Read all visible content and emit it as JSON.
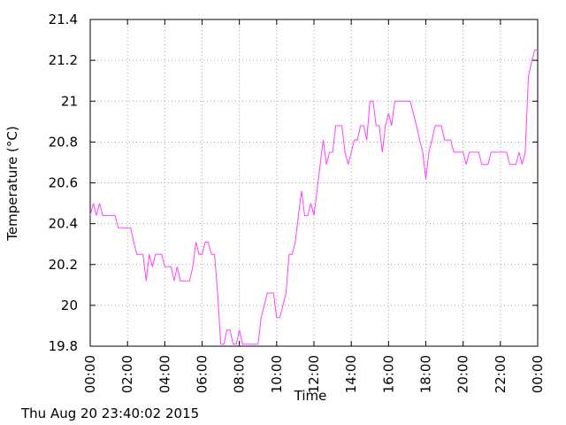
{
  "footer_timestamp": "Thu Aug 20 23:40:02 2015",
  "chart_data": {
    "type": "line",
    "title": "",
    "xlabel": "Time",
    "ylabel": "Temperature (°C)",
    "xlim": [
      "00:00",
      "24:00"
    ],
    "ylim": [
      19.8,
      21.4
    ],
    "grid": true,
    "x_tick_labels": [
      "00:00",
      "02:00",
      "04:00",
      "06:00",
      "08:00",
      "10:00",
      "12:00",
      "14:00",
      "16:00",
      "18:00",
      "20:00",
      "22:00",
      "00:00"
    ],
    "y_tick_labels": [
      "19.8",
      "20",
      "20.2",
      "20.4",
      "20.6",
      "20.8",
      "21",
      "21.2",
      "21.4"
    ],
    "y_ticks": [
      19.8,
      20.0,
      20.2,
      20.4,
      20.6,
      20.8,
      21.0,
      21.2,
      21.4
    ],
    "series": [
      {
        "color": "#ff40ff",
        "points": [
          [
            "00:00",
            20.44
          ],
          [
            "00:10",
            20.5
          ],
          [
            "00:20",
            20.44
          ],
          [
            "00:30",
            20.5
          ],
          [
            "00:40",
            20.44
          ],
          [
            "00:50",
            20.44
          ],
          [
            "01:10",
            20.44
          ],
          [
            "01:20",
            20.44
          ],
          [
            "01:30",
            20.38
          ],
          [
            "01:50",
            20.38
          ],
          [
            "02:10",
            20.38
          ],
          [
            "02:20",
            20.31
          ],
          [
            "02:30",
            20.25
          ],
          [
            "02:40",
            20.25
          ],
          [
            "02:50",
            20.25
          ],
          [
            "03:00",
            20.12
          ],
          [
            "03:10",
            20.25
          ],
          [
            "03:20",
            20.19
          ],
          [
            "03:30",
            20.25
          ],
          [
            "03:40",
            20.25
          ],
          [
            "03:50",
            20.25
          ],
          [
            "04:00",
            20.19
          ],
          [
            "04:10",
            20.19
          ],
          [
            "04:20",
            20.19
          ],
          [
            "04:30",
            20.12
          ],
          [
            "04:40",
            20.19
          ],
          [
            "04:50",
            20.12
          ],
          [
            "05:00",
            20.12
          ],
          [
            "05:10",
            20.12
          ],
          [
            "05:20",
            20.12
          ],
          [
            "05:30",
            20.19
          ],
          [
            "05:40",
            20.31
          ],
          [
            "05:50",
            20.25
          ],
          [
            "06:00",
            20.25
          ],
          [
            "06:10",
            20.31
          ],
          [
            "06:20",
            20.31
          ],
          [
            "06:30",
            20.25
          ],
          [
            "06:40",
            20.25
          ],
          [
            "06:50",
            20.06
          ],
          [
            "07:00",
            19.81
          ],
          [
            "07:10",
            19.81
          ],
          [
            "07:20",
            19.88
          ],
          [
            "07:30",
            19.88
          ],
          [
            "07:40",
            19.81
          ],
          [
            "07:50",
            19.81
          ],
          [
            "08:00",
            19.88
          ],
          [
            "08:10",
            19.81
          ],
          [
            "08:20",
            19.81
          ],
          [
            "08:30",
            19.81
          ],
          [
            "08:40",
            19.81
          ],
          [
            "08:50",
            19.81
          ],
          [
            "09:00",
            19.81
          ],
          [
            "09:10",
            19.94
          ],
          [
            "09:20",
            20.0
          ],
          [
            "09:30",
            20.06
          ],
          [
            "09:40",
            20.06
          ],
          [
            "09:50",
            20.06
          ],
          [
            "10:00",
            19.94
          ],
          [
            "10:10",
            19.94
          ],
          [
            "10:20",
            20.0
          ],
          [
            "10:30",
            20.06
          ],
          [
            "10:40",
            20.25
          ],
          [
            "10:50",
            20.25
          ],
          [
            "11:00",
            20.31
          ],
          [
            "11:10",
            20.44
          ],
          [
            "11:20",
            20.56
          ],
          [
            "11:30",
            20.44
          ],
          [
            "11:40",
            20.44
          ],
          [
            "11:50",
            20.5
          ],
          [
            "12:00",
            20.44
          ],
          [
            "12:10",
            20.56
          ],
          [
            "12:20",
            20.69
          ],
          [
            "12:30",
            20.81
          ],
          [
            "12:40",
            20.69
          ],
          [
            "12:50",
            20.75
          ],
          [
            "13:00",
            20.75
          ],
          [
            "13:10",
            20.88
          ],
          [
            "13:20",
            20.88
          ],
          [
            "13:30",
            20.88
          ],
          [
            "13:40",
            20.75
          ],
          [
            "13:50",
            20.69
          ],
          [
            "14:00",
            20.75
          ],
          [
            "14:10",
            20.81
          ],
          [
            "14:20",
            20.81
          ],
          [
            "14:30",
            20.88
          ],
          [
            "14:40",
            20.88
          ],
          [
            "14:50",
            20.81
          ],
          [
            "15:00",
            21.0
          ],
          [
            "15:10",
            21.0
          ],
          [
            "15:20",
            20.88
          ],
          [
            "15:30",
            20.88
          ],
          [
            "15:40",
            20.75
          ],
          [
            "15:50",
            20.88
          ],
          [
            "16:00",
            20.94
          ],
          [
            "16:10",
            20.88
          ],
          [
            "16:20",
            21.0
          ],
          [
            "16:30",
            21.0
          ],
          [
            "16:40",
            21.0
          ],
          [
            "16:50",
            21.0
          ],
          [
            "17:00",
            21.0
          ],
          [
            "17:10",
            21.0
          ],
          [
            "17:20",
            20.94
          ],
          [
            "17:30",
            20.88
          ],
          [
            "17:40",
            20.81
          ],
          [
            "17:50",
            20.75
          ],
          [
            "18:00",
            20.62
          ],
          [
            "18:10",
            20.75
          ],
          [
            "18:20",
            20.81
          ],
          [
            "18:30",
            20.88
          ],
          [
            "18:40",
            20.88
          ],
          [
            "18:50",
            20.88
          ],
          [
            "19:00",
            20.81
          ],
          [
            "19:10",
            20.81
          ],
          [
            "19:20",
            20.81
          ],
          [
            "19:30",
            20.75
          ],
          [
            "19:40",
            20.75
          ],
          [
            "19:50",
            20.75
          ],
          [
            "20:00",
            20.75
          ],
          [
            "20:10",
            20.69
          ],
          [
            "20:20",
            20.75
          ],
          [
            "20:30",
            20.75
          ],
          [
            "20:40",
            20.75
          ],
          [
            "20:50",
            20.75
          ],
          [
            "21:00",
            20.69
          ],
          [
            "21:10",
            20.69
          ],
          [
            "21:20",
            20.69
          ],
          [
            "21:30",
            20.75
          ],
          [
            "21:40",
            20.75
          ],
          [
            "21:50",
            20.75
          ],
          [
            "22:00",
            20.75
          ],
          [
            "22:10",
            20.75
          ],
          [
            "22:20",
            20.75
          ],
          [
            "22:30",
            20.69
          ],
          [
            "22:40",
            20.69
          ],
          [
            "22:50",
            20.69
          ],
          [
            "23:00",
            20.75
          ],
          [
            "23:10",
            20.69
          ],
          [
            "23:20",
            20.75
          ],
          [
            "23:30",
            21.12
          ],
          [
            "23:40",
            21.19
          ],
          [
            "23:50",
            21.25
          ],
          [
            "24:00",
            21.25
          ]
        ]
      }
    ]
  }
}
